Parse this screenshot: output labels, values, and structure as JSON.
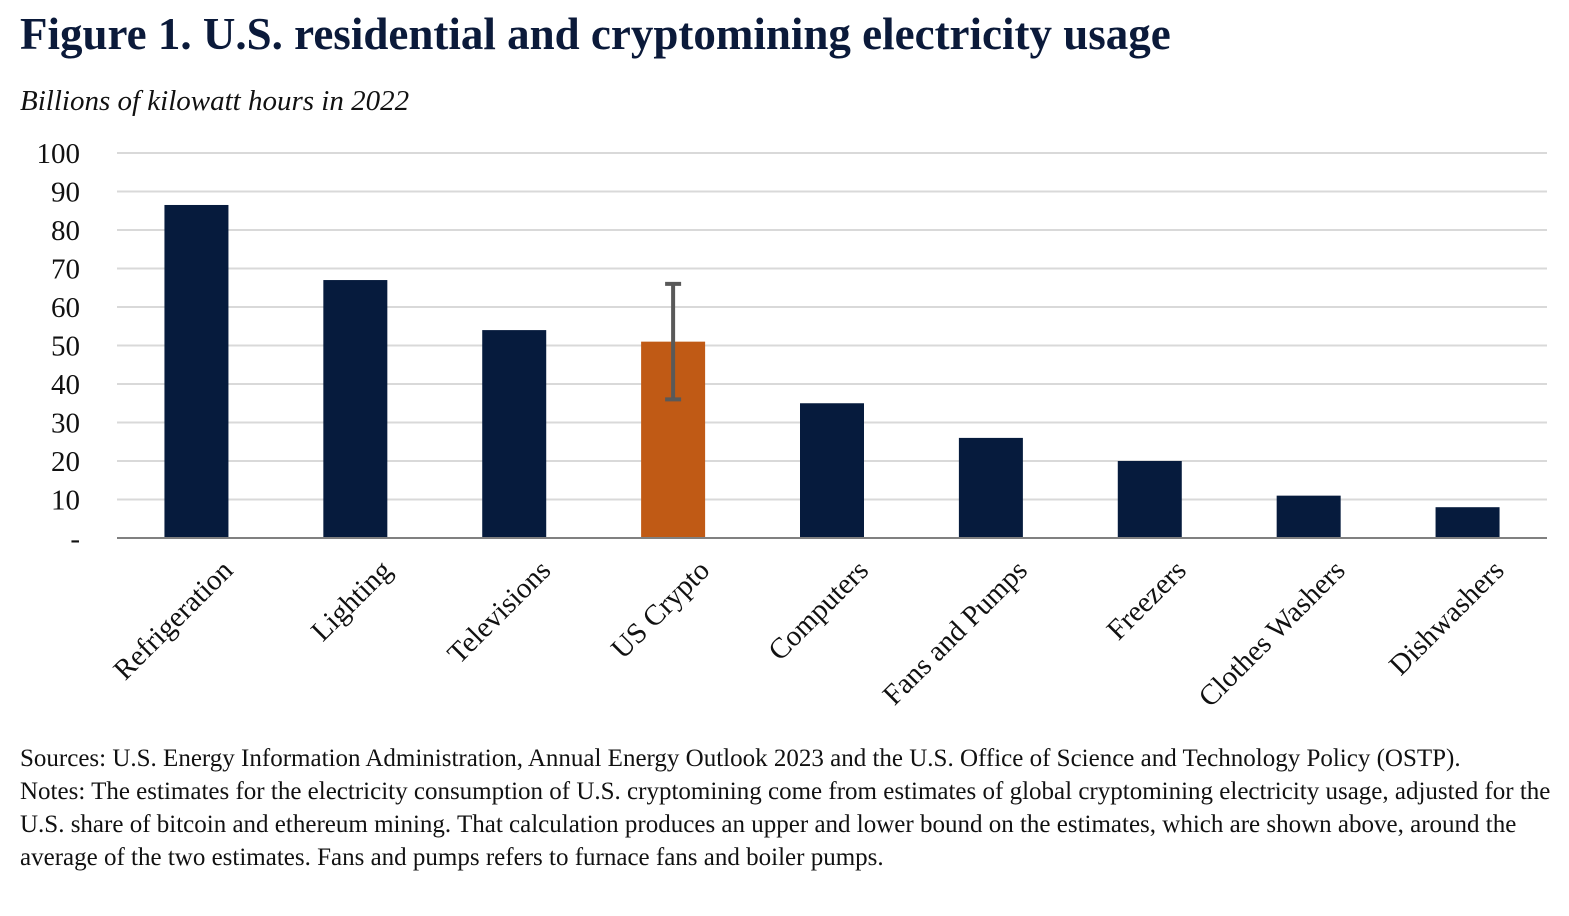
{
  "title": "Figure 1. U.S. residential and cryptomining electricity usage",
  "subtitle": "Billions of kilowatt hours in 2022",
  "chart_data": {
    "type": "bar",
    "categories": [
      "Refrigeration",
      "Lighting",
      "Televisions",
      "US Crypto",
      "Computers",
      "Fans and Pumps",
      "Freezers",
      "Clothes Washers",
      "Dishwashers"
    ],
    "values": [
      86.5,
      67,
      54,
      51,
      35,
      26,
      20,
      11,
      8
    ],
    "highlight_index": 3,
    "error_bar": {
      "category": "US Crypto",
      "value": 51,
      "low": 36,
      "high": 66
    },
    "ylim": [
      0,
      100
    ],
    "yticks": [
      0,
      10,
      20,
      30,
      40,
      50,
      60,
      70,
      80,
      90,
      100
    ],
    "ytick_labels": [
      "-",
      "10",
      "20",
      "30",
      "40",
      "50",
      "60",
      "70",
      "80",
      "90",
      "100"
    ],
    "xlabel": "",
    "ylabel": "",
    "grid": true,
    "colors": {
      "bar": "#061b3d",
      "highlight": "#c05a15",
      "error_bar": "#595959",
      "grid": "#d9d9d9",
      "axis": "#808080",
      "text": "#111111"
    }
  },
  "sources": "Sources: U.S. Energy Information Administration, Annual Energy Outlook 2023 and the U.S. Office of Science and Technology Policy (OSTP).",
  "notes": "Notes: The estimates for the electricity consumption of U.S. cryptomining come from estimates of global cryptomining electricity usage, adjusted for the U.S. share of bitcoin and ethereum mining. That calculation produces an upper and lower bound on the estimates, which are shown above, around the average of the two estimates. Fans and pumps refers to furnace fans and boiler pumps."
}
